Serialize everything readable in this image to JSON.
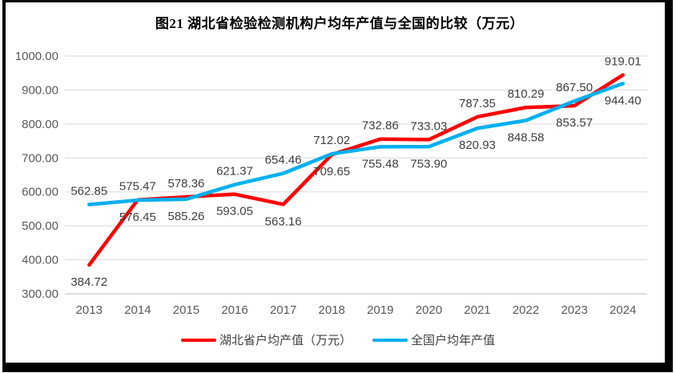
{
  "title": "图21  湖北省检验检测机构户均年产值与全国的比较（万元）",
  "chart_data": {
    "type": "line",
    "categories": [
      "2013",
      "2014",
      "2015",
      "2016",
      "2017",
      "2018",
      "2019",
      "2020",
      "2021",
      "2022",
      "2023",
      "2024"
    ],
    "series": [
      {
        "name": "湖北省户均产值（万元）",
        "color": "#FF0000",
        "label_position": "below",
        "values": [
          384.72,
          576.45,
          585.26,
          593.05,
          563.16,
          709.65,
          755.48,
          753.9,
          820.93,
          848.58,
          853.57,
          944.4
        ]
      },
      {
        "name": "全国户均年产值",
        "color": "#00B0F0",
        "label_position": "above",
        "values": [
          562.85,
          575.47,
          578.36,
          621.37,
          654.46,
          712.02,
          732.86,
          733.03,
          787.35,
          810.29,
          867.5,
          919.01
        ]
      }
    ],
    "title": "图21  湖北省检验检测机构户均年产值与全国的比较（万元）",
    "xlabel": "",
    "ylabel": "",
    "ylim": [
      300,
      1000
    ],
    "ytick_step": 100,
    "ytick_labels": [
      "300.00",
      "400.00",
      "500.00",
      "600.00",
      "700.00",
      "800.00",
      "900.00",
      "1000.00"
    ],
    "value_decimals": 2,
    "grid": true,
    "data_labels": true,
    "legend_position": "bottom"
  },
  "colors": {
    "grid": "#D9D9D9",
    "axis_line": "#BFBFBF",
    "axis_text": "#595959",
    "data_label_text": "#404040",
    "title_text": "#000000",
    "frame_border": "#000000",
    "background": "#FFFFFF"
  }
}
